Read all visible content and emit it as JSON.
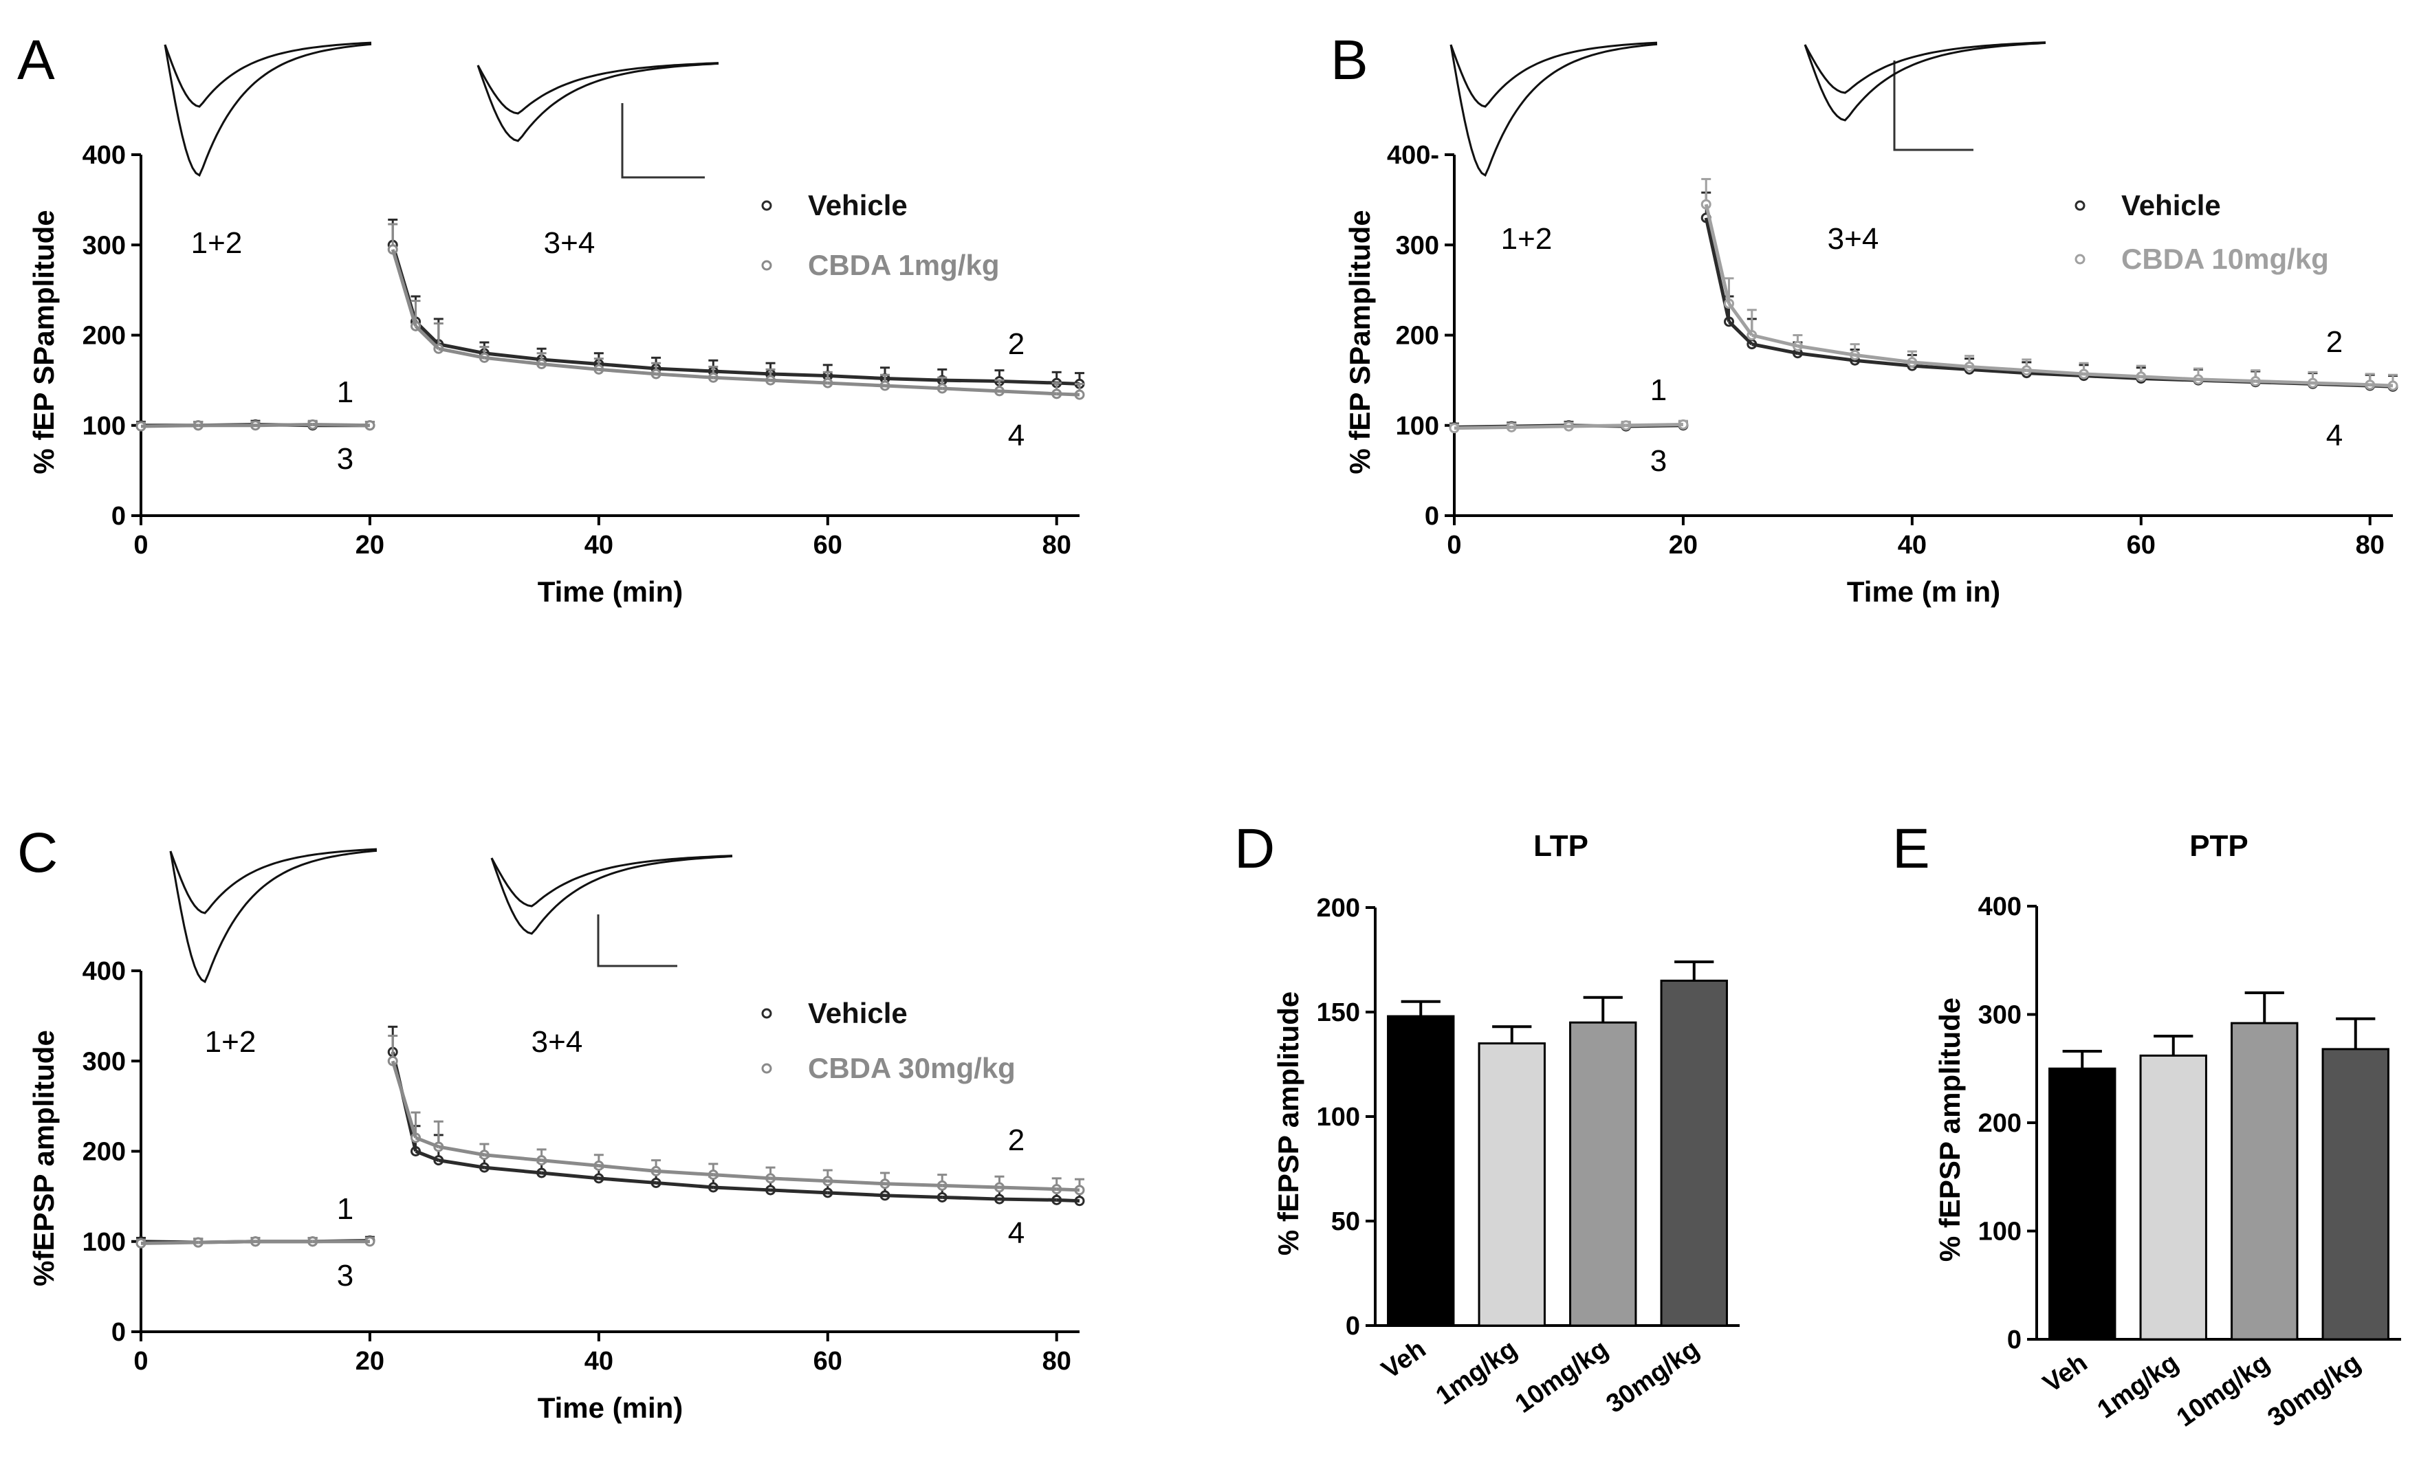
{
  "panels": [
    {
      "id": "A",
      "letter": "A",
      "chart_data": {
        "type": "scatter",
        "xlabel": "Time (min)",
        "ylabel": "% fEP SPamplitude",
        "xlim": [
          0,
          82
        ],
        "ylim": [
          0,
          400
        ],
        "xticks": [
          "0",
          "20",
          "40",
          "60",
          "80"
        ],
        "yticks": [
          "0",
          "100",
          "200",
          "300",
          "400"
        ],
        "legend_position": "top-right",
        "series": [
          {
            "name": "Vehicle",
            "color": "#2b2b2b",
            "x": [
              0,
              5,
              10,
              15,
              20,
              22,
              24,
              26,
              30,
              35,
              40,
              45,
              50,
              55,
              60,
              65,
              70,
              75,
              80,
              82
            ],
            "y": [
              100,
              100,
              101,
              100,
              100,
              300,
              215,
              190,
              180,
              173,
              168,
              163,
              160,
              157,
              155,
              152,
              150,
              149,
              147,
              146
            ]
          },
          {
            "name": "CBDA 1mg/kg",
            "color": "#8a8a8a",
            "x": [
              0,
              5,
              10,
              15,
              20,
              22,
              24,
              26,
              30,
              35,
              40,
              45,
              50,
              55,
              60,
              65,
              70,
              75,
              80,
              82
            ],
            "y": [
              99,
              100,
              100,
              101,
              100,
              295,
              210,
              185,
              175,
              168,
              162,
              157,
              153,
              150,
              147,
              144,
              141,
              138,
              135,
              134
            ]
          }
        ],
        "annotations": [
          "1+2",
          "3+4",
          "1",
          "3",
          "2",
          "4"
        ]
      }
    },
    {
      "id": "B",
      "letter": "B",
      "chart_data": {
        "type": "scatter",
        "xlabel": "Time (m in)",
        "ylabel": "% fEP SPamplitude",
        "xlim": [
          0,
          82
        ],
        "ylim": [
          0,
          400
        ],
        "xticks": [
          "0",
          "20",
          "40",
          "60",
          "80"
        ],
        "yticks": [
          "0",
          "100",
          "200",
          "300",
          "400-"
        ],
        "legend_position": "top-right",
        "series": [
          {
            "name": "Vehicle",
            "color": "#2b2b2b",
            "x": [
              0,
              5,
              10,
              15,
              20,
              22,
              24,
              26,
              30,
              35,
              40,
              45,
              50,
              55,
              60,
              65,
              70,
              75,
              80,
              82
            ],
            "y": [
              98,
              99,
              100,
              99,
              100,
              330,
              215,
              190,
              180,
              172,
              166,
              162,
              158,
              155,
              152,
              150,
              148,
              146,
              144,
              143
            ]
          },
          {
            "name": "CBDA 10mg/kg",
            "color": "#a0a0a0",
            "x": [
              0,
              5,
              10,
              15,
              20,
              22,
              24,
              26,
              30,
              35,
              40,
              45,
              50,
              55,
              60,
              65,
              70,
              75,
              80,
              82
            ],
            "y": [
              97,
              98,
              99,
              100,
              101,
              345,
              235,
              200,
              188,
              178,
              170,
              165,
              161,
              157,
              154,
              151,
              149,
              147,
              145,
              144
            ]
          }
        ],
        "annotations": [
          "1+2",
          "3+4",
          "1",
          "3",
          "2",
          "4"
        ]
      }
    },
    {
      "id": "C",
      "letter": "C",
      "chart_data": {
        "type": "scatter",
        "xlabel": "Time (min)",
        "ylabel": "%fEPSP amplitude",
        "xlim": [
          0,
          82
        ],
        "ylim": [
          0,
          400
        ],
        "xticks": [
          "0",
          "20",
          "40",
          "60",
          "80"
        ],
        "yticks": [
          "0",
          "100",
          "200",
          "300",
          "400"
        ],
        "legend_position": "top-right",
        "series": [
          {
            "name": "Vehicle",
            "color": "#2b2b2b",
            "x": [
              0,
              5,
              10,
              15,
              20,
              22,
              24,
              26,
              30,
              35,
              40,
              45,
              50,
              55,
              60,
              65,
              70,
              75,
              80,
              82
            ],
            "y": [
              100,
              99,
              100,
              100,
              101,
              310,
              200,
              190,
              182,
              176,
              170,
              165,
              160,
              157,
              154,
              151,
              149,
              147,
              146,
              145
            ]
          },
          {
            "name": "CBDA 30mg/kg",
            "color": "#8a8a8a",
            "x": [
              0,
              5,
              10,
              15,
              20,
              22,
              24,
              26,
              30,
              35,
              40,
              45,
              50,
              55,
              60,
              65,
              70,
              75,
              80,
              82
            ],
            "y": [
              98,
              99,
              100,
              100,
              100,
              300,
              215,
              205,
              196,
              190,
              184,
              178,
              174,
              170,
              167,
              164,
              162,
              160,
              158,
              157
            ]
          }
        ],
        "annotations": [
          "1+2",
          "3+4",
          "1",
          "3",
          "2",
          "4"
        ]
      }
    },
    {
      "id": "D",
      "letter": "D",
      "chart_data": {
        "type": "bar",
        "title": "LTP",
        "ylabel": "% fEPSP amplitude",
        "ylim": [
          0,
          200
        ],
        "yticks": [
          "0",
          "50",
          "100",
          "150",
          "200"
        ],
        "categories": [
          "Veh",
          "1mg/kg",
          "10mg/kg",
          "30mg/kg"
        ],
        "values": [
          148,
          135,
          145,
          165
        ],
        "errors": [
          7,
          8,
          12,
          9
        ],
        "colors": [
          "#000000",
          "#d6d6d6",
          "#9a9a9a",
          "#555555"
        ]
      }
    },
    {
      "id": "E",
      "letter": "E",
      "chart_data": {
        "type": "bar",
        "title": "PTP",
        "ylabel": "% fEPSP amplitude",
        "ylim": [
          0,
          400
        ],
        "yticks": [
          "0",
          "100",
          "200",
          "300",
          "400"
        ],
        "categories": [
          "Veh",
          "1mg/kg",
          "10mg/kg",
          "30mg/kg"
        ],
        "values": [
          250,
          262,
          292,
          268
        ],
        "errors": [
          16,
          18,
          28,
          28
        ],
        "colors": [
          "#000000",
          "#d6d6d6",
          "#9a9a9a",
          "#555555"
        ]
      }
    }
  ]
}
